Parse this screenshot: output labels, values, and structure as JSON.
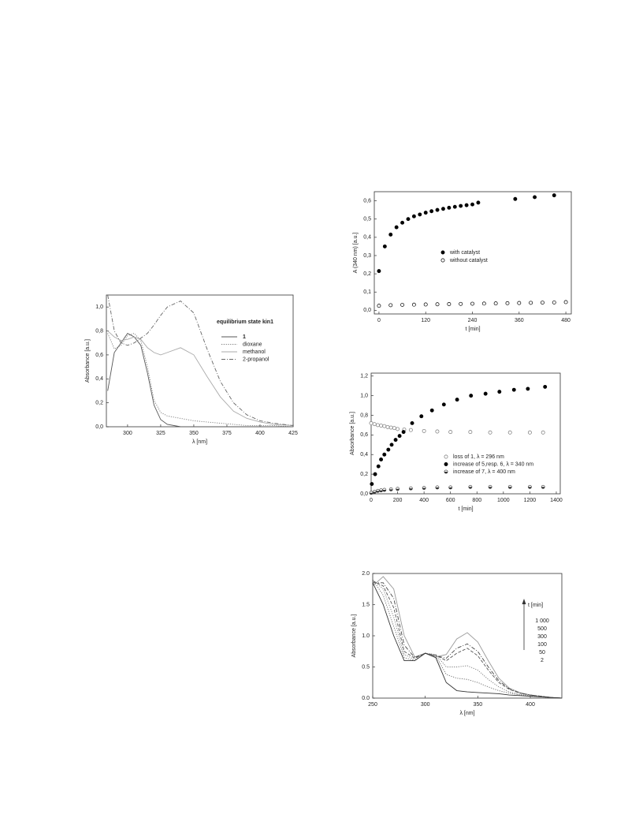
{
  "chart_data": [
    {
      "type": "line",
      "xlabel": "λ [nm]",
      "ylabel": "Absorbance [a.u.]",
      "legend_title": "equilibrium state kin1",
      "x": [
        285,
        290,
        295,
        300,
        305,
        310,
        315,
        320,
        325,
        330,
        340,
        350,
        360,
        370,
        380,
        390,
        400,
        410,
        425
      ],
      "series": [
        {
          "name": "1",
          "color": "#555555",
          "dash": "solid",
          "values": [
            0.3,
            0.62,
            0.7,
            0.78,
            0.75,
            0.68,
            0.45,
            0.18,
            0.06,
            0.02,
            0,
            0,
            0,
            0,
            0,
            0,
            0,
            0,
            0
          ]
        },
        {
          "name": "dioxane",
          "color": "#777777",
          "dash": "dot",
          "values": [
            0.78,
            0.65,
            0.68,
            0.76,
            0.78,
            0.72,
            0.5,
            0.22,
            0.12,
            0.09,
            0.07,
            0.05,
            0.04,
            0.03,
            0.02,
            0.01,
            0.01,
            0.01,
            0
          ]
        },
        {
          "name": "methanol",
          "color": "#aaaaaa",
          "dash": "solid",
          "values": [
            0.8,
            0.75,
            0.72,
            0.73,
            0.75,
            0.73,
            0.66,
            0.62,
            0.6,
            0.62,
            0.66,
            0.6,
            0.42,
            0.25,
            0.13,
            0.07,
            0.04,
            0.02,
            0.01
          ]
        },
        {
          "name": "2-propanol",
          "color": "#666666",
          "dash": "dashdot",
          "values": [
            1.1,
            0.8,
            0.7,
            0.68,
            0.7,
            0.74,
            0.78,
            0.85,
            0.93,
            1.0,
            1.05,
            0.95,
            0.65,
            0.38,
            0.2,
            0.1,
            0.05,
            0.03,
            0.01
          ]
        }
      ],
      "xlim": [
        284,
        425
      ],
      "xticks": [
        300,
        325,
        350,
        375,
        400,
        425
      ],
      "ylim": [
        0,
        1.1
      ],
      "yticks": [
        {
          "value": 0,
          "label": "0,0"
        },
        {
          "value": 0.2,
          "label": "0,2"
        },
        {
          "value": 0.4,
          "label": "0,4"
        },
        {
          "value": 0.6,
          "label": "0,6"
        },
        {
          "value": 0.8,
          "label": "0,8"
        },
        {
          "value": 1.0,
          "label": "1,0"
        }
      ]
    },
    {
      "type": "scatter",
      "xlabel": "t [min]",
      "ylabel": "A (340 nm) [a.u.]",
      "series": [
        {
          "name": "with catalyst",
          "color": "#000000",
          "marker": "filled",
          "x": [
            0,
            15,
            30,
            45,
            60,
            75,
            90,
            105,
            120,
            135,
            150,
            165,
            180,
            195,
            210,
            225,
            240,
            255,
            350,
            400,
            450
          ],
          "values": [
            0.215,
            0.35,
            0.415,
            0.455,
            0.48,
            0.5,
            0.515,
            0.525,
            0.535,
            0.543,
            0.55,
            0.556,
            0.562,
            0.567,
            0.572,
            0.576,
            0.58,
            0.59,
            0.61,
            0.62,
            0.63
          ]
        },
        {
          "name": "without catalyst",
          "color": "#000000",
          "marker": "open",
          "x": [
            0,
            30,
            60,
            90,
            120,
            150,
            180,
            210,
            240,
            270,
            300,
            330,
            360,
            390,
            420,
            450,
            480
          ],
          "values": [
            0.025,
            0.028,
            0.03,
            0.031,
            0.032,
            0.033,
            0.034,
            0.035,
            0.036,
            0.037,
            0.038,
            0.039,
            0.04,
            0.041,
            0.042,
            0.043,
            0.045
          ]
        }
      ],
      "xlim": [
        -12,
        494
      ],
      "xticks": [
        0,
        120,
        240,
        360,
        480
      ],
      "ylim": [
        -0.02,
        0.65
      ],
      "yticks": [
        {
          "value": 0,
          "label": "0,0"
        },
        {
          "value": 0.1,
          "label": "0,1"
        },
        {
          "value": 0.2,
          "label": "0,2"
        },
        {
          "value": 0.3,
          "label": "0,3"
        },
        {
          "value": 0.4,
          "label": "0,4"
        },
        {
          "value": 0.5,
          "label": "0,5"
        },
        {
          "value": 0.6,
          "label": "0,6"
        }
      ]
    },
    {
      "type": "scatter",
      "xlabel": "t [min]",
      "ylabel": "Absorbance [a.u.]",
      "series": [
        {
          "name": "loss of 1, λ = 296 nm",
          "color": "#777777",
          "marker": "open",
          "x": [
            0,
            25,
            50,
            75,
            100,
            125,
            150,
            175,
            200,
            250,
            300,
            400,
            500,
            600,
            750,
            900,
            1050,
            1200,
            1300
          ],
          "values": [
            0.72,
            0.71,
            0.7,
            0.695,
            0.69,
            0.68,
            0.675,
            0.67,
            0.66,
            0.655,
            0.65,
            0.64,
            0.635,
            0.63,
            0.63,
            0.625,
            0.625,
            0.625,
            0.625
          ]
        },
        {
          "name": "increase of 5,resp. 6, λ = 340 nm",
          "color": "#000000",
          "marker": "filled",
          "x": [
            5,
            30,
            55,
            75,
            100,
            130,
            155,
            185,
            215,
            245,
            310,
            380,
            460,
            550,
            650,
            755,
            865,
            970,
            1080,
            1185,
            1315
          ],
          "values": [
            0.1,
            0.2,
            0.28,
            0.35,
            0.4,
            0.45,
            0.5,
            0.55,
            0.59,
            0.63,
            0.72,
            0.79,
            0.85,
            0.91,
            0.96,
            1.0,
            1.02,
            1.04,
            1.06,
            1.07,
            1.09
          ]
        },
        {
          "name": "increase of 7, λ = 400 nm",
          "color": "#333333",
          "marker": "half",
          "x": [
            0,
            25,
            50,
            75,
            100,
            150,
            200,
            300,
            400,
            500,
            600,
            750,
            900,
            1050,
            1200,
            1300
          ],
          "values": [
            0.01,
            0.02,
            0.03,
            0.035,
            0.04,
            0.045,
            0.05,
            0.055,
            0.06,
            0.065,
            0.065,
            0.07,
            0.07,
            0.07,
            0.07,
            0.07
          ]
        }
      ],
      "xlim": [
        0,
        1430
      ],
      "xticks": [
        0,
        200,
        400,
        600,
        800,
        1000,
        1200,
        1400
      ],
      "ylim": [
        0,
        1.23
      ],
      "yticks": [
        {
          "value": 0,
          "label": "0,0"
        },
        {
          "value": 0.2,
          "label": "0,2"
        },
        {
          "value": 0.4,
          "label": "0,4"
        },
        {
          "value": 0.6,
          "label": "0,6"
        },
        {
          "value": 0.8,
          "label": "0,8"
        },
        {
          "value": 1.0,
          "label": "1,0"
        },
        {
          "value": 1.2,
          "label": "1,2"
        }
      ]
    },
    {
      "type": "line",
      "xlabel": "λ [nm]",
      "ylabel": "Absorbance [a.u.]",
      "legend_title": "t [min]",
      "x": [
        250,
        260,
        270,
        280,
        290,
        300,
        310,
        320,
        330,
        340,
        350,
        360,
        370,
        380,
        390,
        400,
        410,
        420,
        430
      ],
      "series": [
        {
          "name": "1 000",
          "color": "#999999",
          "dash": "solid",
          "values": [
            1.8,
            1.95,
            1.75,
            1.0,
            0.66,
            0.72,
            0.66,
            0.7,
            0.95,
            1.05,
            0.9,
            0.6,
            0.32,
            0.16,
            0.09,
            0.05,
            0.03,
            0.01,
            0
          ]
        },
        {
          "name": "500",
          "color": "#444444",
          "dash": "dashdot",
          "values": [
            1.85,
            1.85,
            1.6,
            0.85,
            0.65,
            0.72,
            0.68,
            0.64,
            0.8,
            0.87,
            0.75,
            0.5,
            0.28,
            0.15,
            0.08,
            0.05,
            0.03,
            0.01,
            0
          ]
        },
        {
          "name": "300",
          "color": "#555555",
          "dash": "dash",
          "values": [
            1.88,
            1.8,
            1.45,
            0.75,
            0.64,
            0.72,
            0.69,
            0.6,
            0.72,
            0.8,
            0.68,
            0.45,
            0.25,
            0.14,
            0.08,
            0.05,
            0.03,
            0.01,
            0
          ]
        },
        {
          "name": "100",
          "color": "#777777",
          "dash": "dot",
          "values": [
            1.9,
            1.75,
            1.3,
            0.7,
            0.62,
            0.72,
            0.7,
            0.5,
            0.5,
            0.52,
            0.45,
            0.3,
            0.18,
            0.1,
            0.06,
            0.04,
            0.02,
            0.01,
            0
          ]
        },
        {
          "name": "50",
          "color": "#666666",
          "dash": "dot",
          "values": [
            1.9,
            1.65,
            1.15,
            0.65,
            0.6,
            0.72,
            0.68,
            0.38,
            0.32,
            0.3,
            0.25,
            0.18,
            0.12,
            0.08,
            0.05,
            0.03,
            0.02,
            0.01,
            0
          ]
        },
        {
          "name": "2",
          "color": "#333333",
          "dash": "solid",
          "values": [
            1.85,
            1.5,
            1.0,
            0.6,
            0.6,
            0.72,
            0.65,
            0.25,
            0.12,
            0.1,
            0.09,
            0.08,
            0.07,
            0.05,
            0.04,
            0.03,
            0.02,
            0.01,
            0
          ]
        }
      ],
      "xlim": [
        250,
        430
      ],
      "xticks": [
        250,
        300,
        350,
        400
      ],
      "ylim": [
        0,
        2.0
      ],
      "yticks": [
        {
          "value": 0,
          "label": "0.0"
        },
        0.5,
        {
          "value": 1.0,
          "label": "1.0"
        },
        1.5,
        {
          "value": 2.0,
          "label": "2.0"
        }
      ]
    }
  ]
}
